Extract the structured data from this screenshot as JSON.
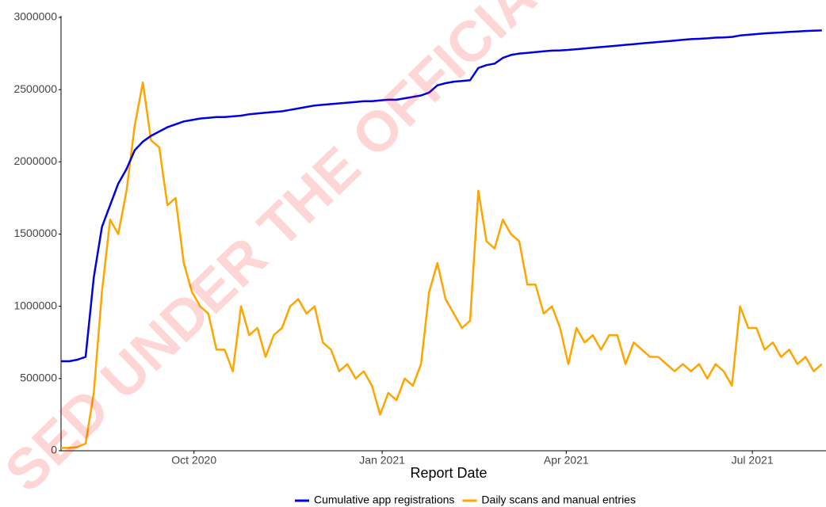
{
  "chart_data": {
    "type": "line",
    "watermark": "SED UNDER THE OFFICIA",
    "x_label": "Report Date",
    "x": [
      "2020-07-28",
      "2020-08-01",
      "2020-08-05",
      "2020-08-09",
      "2020-08-13",
      "2020-08-17",
      "2020-08-21",
      "2020-08-25",
      "2020-08-29",
      "2020-09-02",
      "2020-09-06",
      "2020-09-10",
      "2020-09-14",
      "2020-09-18",
      "2020-09-22",
      "2020-09-26",
      "2020-09-30",
      "2020-10-04",
      "2020-10-08",
      "2020-10-12",
      "2020-10-16",
      "2020-10-20",
      "2020-10-24",
      "2020-10-28",
      "2020-11-01",
      "2020-11-05",
      "2020-11-09",
      "2020-11-13",
      "2020-11-17",
      "2020-11-21",
      "2020-11-25",
      "2020-11-29",
      "2020-12-03",
      "2020-12-07",
      "2020-12-11",
      "2020-12-15",
      "2020-12-19",
      "2020-12-23",
      "2020-12-27",
      "2020-12-31",
      "2021-01-04",
      "2021-01-08",
      "2021-01-12",
      "2021-01-16",
      "2021-01-20",
      "2021-01-24",
      "2021-01-28",
      "2021-02-01",
      "2021-02-05",
      "2021-02-09",
      "2021-02-13",
      "2021-02-17",
      "2021-02-21",
      "2021-02-25",
      "2021-03-01",
      "2021-03-05",
      "2021-03-09",
      "2021-03-13",
      "2021-03-17",
      "2021-03-21",
      "2021-03-25",
      "2021-03-29",
      "2021-04-02",
      "2021-04-06",
      "2021-04-10",
      "2021-04-14",
      "2021-04-18",
      "2021-04-22",
      "2021-04-26",
      "2021-04-30",
      "2021-05-04",
      "2021-05-08",
      "2021-05-12",
      "2021-05-16",
      "2021-05-20",
      "2021-05-24",
      "2021-05-28",
      "2021-06-01",
      "2021-06-05",
      "2021-06-09",
      "2021-06-13",
      "2021-06-17",
      "2021-06-21",
      "2021-06-25",
      "2021-06-29",
      "2021-07-03",
      "2021-07-07",
      "2021-07-11",
      "2021-07-15",
      "2021-07-19",
      "2021-07-23",
      "2021-07-27",
      "2021-07-31",
      "2021-08-04"
    ],
    "series": [
      {
        "name": "Cumulative app registrations",
        "color": "#0000e0",
        "values": [
          620000,
          620000,
          630000,
          650000,
          1200000,
          1550000,
          1700000,
          1850000,
          1950000,
          2080000,
          2140000,
          2180000,
          2210000,
          2240000,
          2260000,
          2280000,
          2290000,
          2300000,
          2305000,
          2310000,
          2310000,
          2315000,
          2320000,
          2330000,
          2335000,
          2340000,
          2345000,
          2350000,
          2360000,
          2370000,
          2380000,
          2390000,
          2395000,
          2400000,
          2405000,
          2410000,
          2415000,
          2420000,
          2420000,
          2425000,
          2430000,
          2430000,
          2440000,
          2450000,
          2460000,
          2480000,
          2530000,
          2545000,
          2555000,
          2560000,
          2565000,
          2650000,
          2670000,
          2680000,
          2720000,
          2740000,
          2750000,
          2755000,
          2760000,
          2765000,
          2770000,
          2772000,
          2775000,
          2780000,
          2785000,
          2790000,
          2795000,
          2800000,
          2805000,
          2810000,
          2815000,
          2820000,
          2825000,
          2830000,
          2835000,
          2840000,
          2845000,
          2850000,
          2852000,
          2855000,
          2860000,
          2862000,
          2865000,
          2875000,
          2880000,
          2885000,
          2890000,
          2893000,
          2896000,
          2900000,
          2903000,
          2906000,
          2908000,
          2910000
        ]
      },
      {
        "name": "Daily scans and manual entries",
        "color": "#ffa500",
        "values": [
          20000,
          20000,
          25000,
          50000,
          400000,
          1100000,
          1600000,
          1500000,
          1800000,
          2250000,
          2550000,
          2150000,
          2100000,
          1700000,
          1750000,
          1300000,
          1100000,
          1000000,
          950000,
          700000,
          700000,
          550000,
          1000000,
          800000,
          850000,
          650000,
          800000,
          850000,
          1000000,
          1050000,
          950000,
          1000000,
          750000,
          700000,
          550000,
          600000,
          500000,
          550000,
          450000,
          250000,
          400000,
          350000,
          500000,
          450000,
          600000,
          1100000,
          1300000,
          1050000,
          950000,
          850000,
          900000,
          1800000,
          1450000,
          1400000,
          1600000,
          1500000,
          1450000,
          1150000,
          1150000,
          950000,
          1000000,
          850000,
          600000,
          850000,
          750000,
          800000,
          700000,
          800000,
          800000,
          600000,
          750000,
          700000,
          650000,
          650000,
          600000,
          550000,
          600000,
          550000,
          600000,
          500000,
          600000,
          550000,
          450000,
          1000000,
          850000,
          850000,
          700000,
          750000,
          650000,
          700000,
          600000,
          650000,
          550000,
          600000
        ]
      }
    ],
    "xlim": [
      "2020-07-28",
      "2021-08-06"
    ],
    "xticks": [
      {
        "value": "2020-10-01",
        "label": "Oct 2020"
      },
      {
        "value": "2021-01-01",
        "label": "Jan 2021"
      },
      {
        "value": "2021-04-01",
        "label": "Apr 2021"
      },
      {
        "value": "2021-07-01",
        "label": "Jul 2021"
      }
    ],
    "ylim": [
      0,
      3000000
    ],
    "yticks": [
      0,
      500000,
      1000000,
      1500000,
      2000000,
      2500000,
      3000000
    ],
    "grid": false,
    "legend": "bottom"
  }
}
